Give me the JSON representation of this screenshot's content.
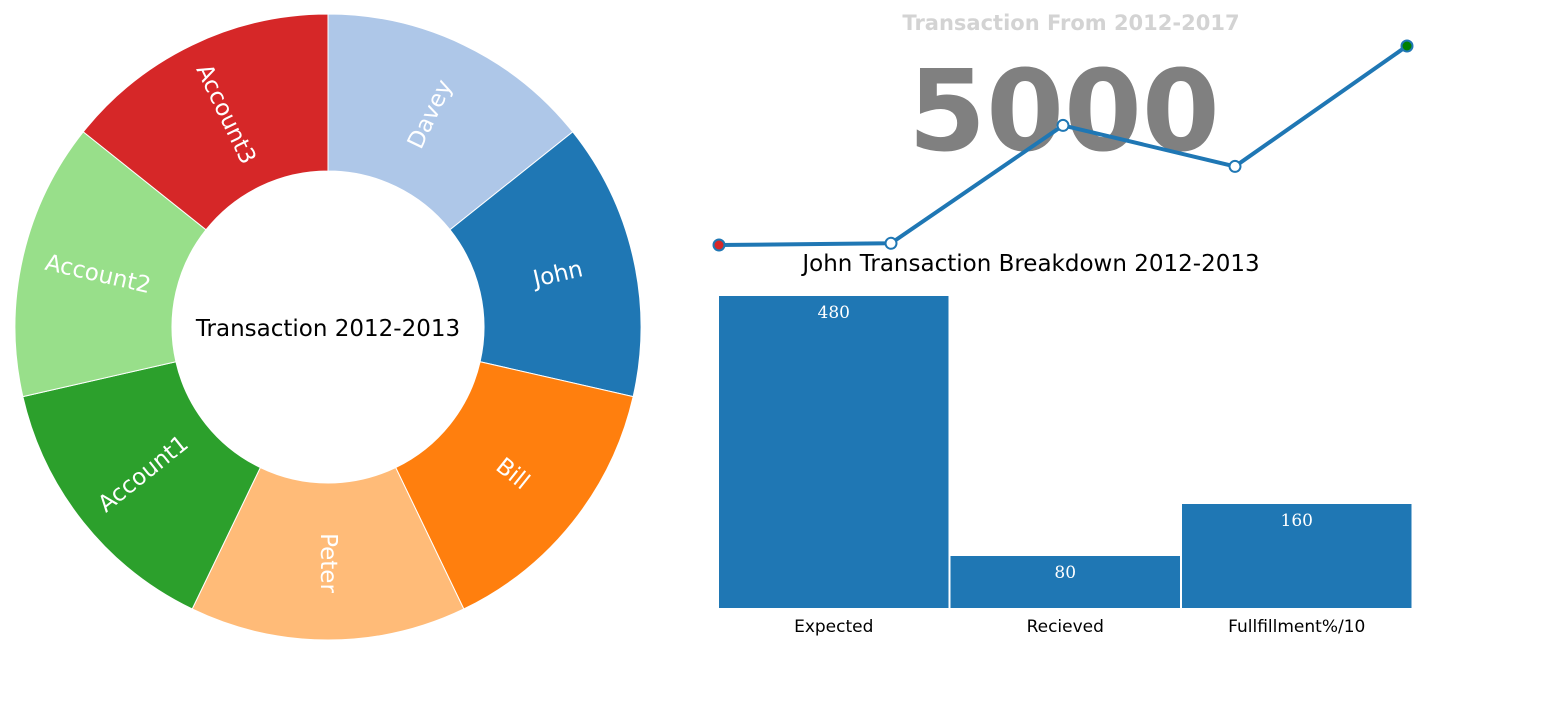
{
  "chart_data": [
    {
      "type": "pie",
      "donut": true,
      "center_label": "Transaction 2012-2013",
      "slices": [
        {
          "label": "Davey",
          "value": 1,
          "color": "#aec7e8"
        },
        {
          "label": "John",
          "value": 1,
          "color": "#1f77b4"
        },
        {
          "label": "Bill",
          "value": 1,
          "color": "#ff7f0e"
        },
        {
          "label": "Peter",
          "value": 1,
          "color": "#ffbb78"
        },
        {
          "label": "Account1",
          "value": 1,
          "color": "#2ca02c"
        },
        {
          "label": "Account2",
          "value": 1,
          "color": "#98df8a"
        },
        {
          "label": "Account3",
          "value": 1,
          "color": "#d62728"
        }
      ]
    },
    {
      "type": "line",
      "title": "Transaction From 2012-2017",
      "highlight_value": "5000",
      "values": [
        0,
        2,
        140,
        92,
        233
      ],
      "color": "#1f77b4",
      "first_point_color": "#d62728",
      "last_point_color": "#008000"
    },
    {
      "type": "bar",
      "title": "John Transaction Breakdown 2012-2013",
      "categories": [
        "Expected",
        "Recieved",
        "Fullfillment%/10"
      ],
      "values": [
        480,
        80,
        160
      ],
      "data_labels": [
        "480",
        "80",
        "160"
      ],
      "color": "#1f77b4",
      "ylim": [
        0,
        480
      ]
    }
  ]
}
